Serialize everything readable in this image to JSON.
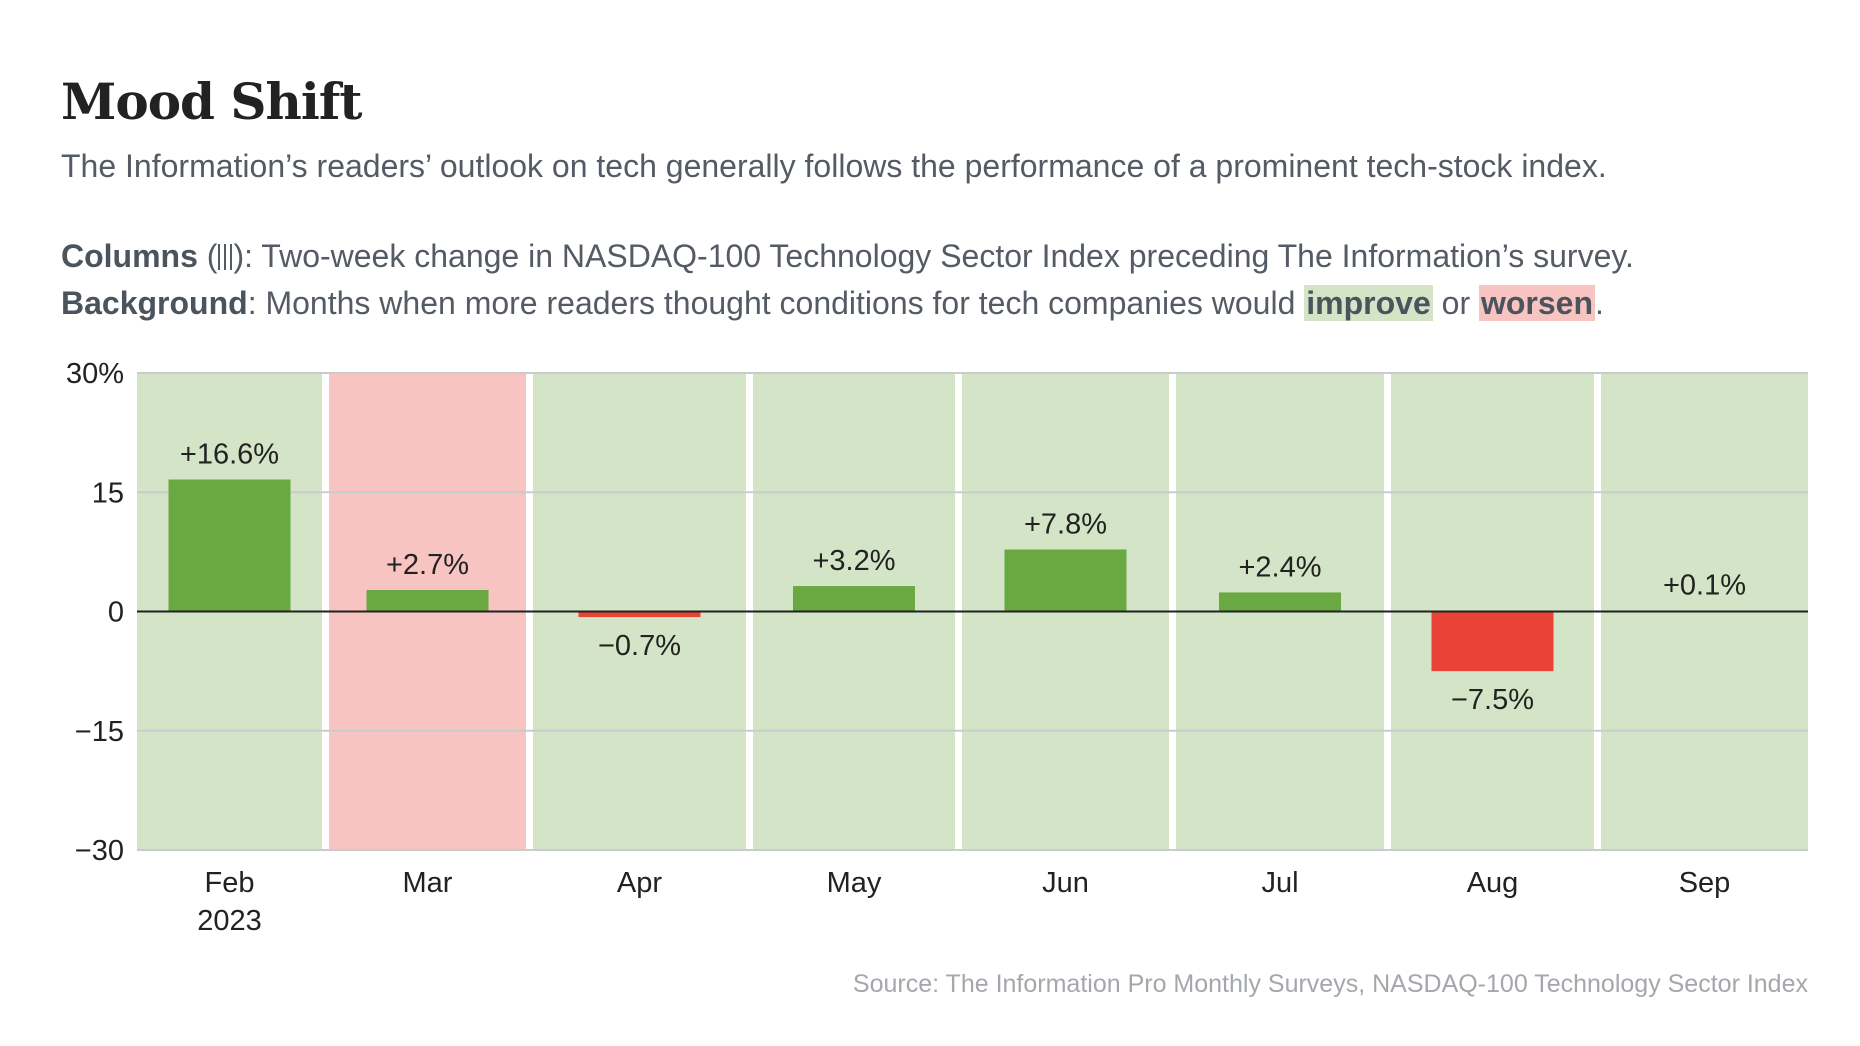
{
  "header": {
    "title": "Mood Shift",
    "subtitle": "The Information’s readers’ outlook on tech generally follows the performance of a prominent tech-stock index."
  },
  "legend": {
    "columns_label": "Columns",
    "columns_icon": "columns-icon",
    "columns_text": ": Two-week change in NASDAQ-100 Technology Sector Index preceding The Information’s survey.",
    "background_label": "Background",
    "background_text": ": Months when more readers thought conditions for tech companies would ",
    "improve": "improve",
    "or": " or ",
    "worsen": "worsen",
    "end": "."
  },
  "source": "Source: The Information Pro Monthly Surveys, NASDAQ-100 Technology Sector Index",
  "colors": {
    "improve_bg": "#d3e5c6",
    "worsen_bg": "#f7c4c1",
    "positive_bar": "#6aa842",
    "negative_bar": "#e84336"
  },
  "chart_data": {
    "type": "bar",
    "categories": [
      "Feb",
      "Mar",
      "Apr",
      "May",
      "Jun",
      "Jul",
      "Aug",
      "Sep"
    ],
    "category_sublabels": [
      "2023",
      "",
      "",
      "",
      "",
      "",
      "",
      ""
    ],
    "values": [
      16.6,
      2.7,
      -0.7,
      3.2,
      7.8,
      2.4,
      -7.5,
      0.1
    ],
    "data_labels": [
      "+16.6%",
      "+2.7%",
      "−0.7%",
      "+3.2%",
      "+7.8%",
      "+2.4%",
      "−7.5%",
      "+0.1%"
    ],
    "background": [
      "improve",
      "worsen",
      "improve",
      "improve",
      "improve",
      "improve",
      "improve",
      "improve"
    ],
    "ylim": [
      -30,
      30
    ],
    "yticks": [
      30,
      15,
      0,
      -15,
      -30
    ],
    "ytick_labels": [
      "30%",
      "15",
      "0",
      "−15",
      "−30"
    ],
    "grid": true,
    "xlabel": "",
    "ylabel": ""
  }
}
